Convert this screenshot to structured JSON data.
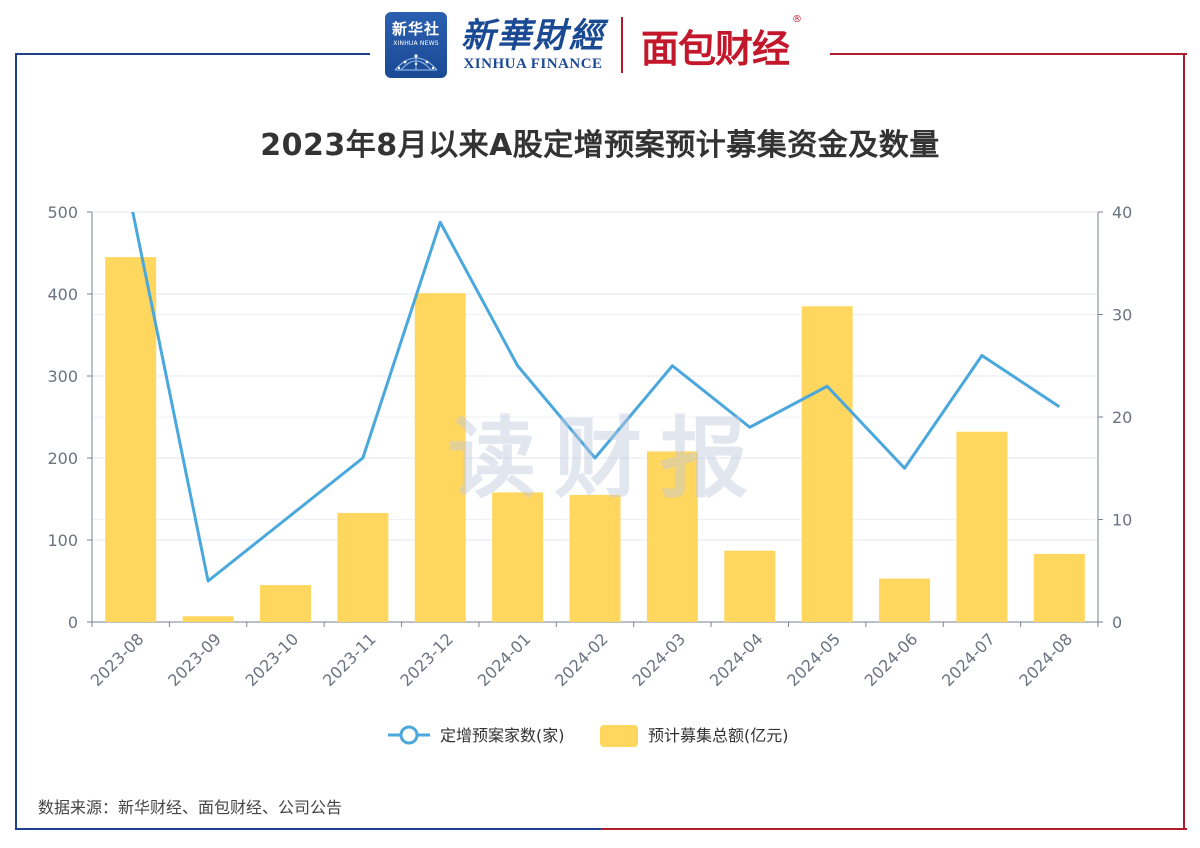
{
  "header": {
    "xinhua_badge_cn": "新华社",
    "xinhua_badge_en": "XINHUA NEWS",
    "brand_cn": "新華財經",
    "brand_en": "XINHUA FINANCE",
    "partner_brand": "面包财经",
    "partner_reg_mark": "®"
  },
  "watermark": "读财报",
  "source_note": "数据来源：新华财经、面包财经、公司公告",
  "colors": {
    "bar": "#FFD75E",
    "line": "#4AA8DC",
    "frame_blue": "#1f3f8f",
    "frame_red": "#b01c2e"
  },
  "chart_data": {
    "type": "bar",
    "title": "2023年8月以来A股定增预案预计募集资金及数量",
    "categories": [
      "2023-08",
      "2023-09",
      "2023-10",
      "2023-11",
      "2023-12",
      "2024-01",
      "2024-02",
      "2024-03",
      "2024-04",
      "2024-05",
      "2024-06",
      "2024-07",
      "2024-08"
    ],
    "series": [
      {
        "name": "预计募集总额(亿元)",
        "type": "bar",
        "axis": "left",
        "values": [
          445,
          7,
          45,
          133,
          401,
          158,
          155,
          208,
          87,
          385,
          53,
          232,
          83
        ]
      },
      {
        "name": "定增预案家数(家)",
        "type": "line",
        "axis": "right",
        "values": [
          41,
          4,
          10,
          16,
          39,
          25,
          16,
          25,
          19,
          23,
          15,
          26,
          21
        ]
      }
    ],
    "y_left": {
      "ylim": [
        0,
        500
      ],
      "ticks": [
        0,
        100,
        200,
        300,
        400,
        500
      ]
    },
    "y_right": {
      "ylim": [
        0,
        40
      ],
      "ticks": [
        0,
        10,
        20,
        30,
        40
      ]
    },
    "grid": true,
    "legend": "bottom-center"
  }
}
